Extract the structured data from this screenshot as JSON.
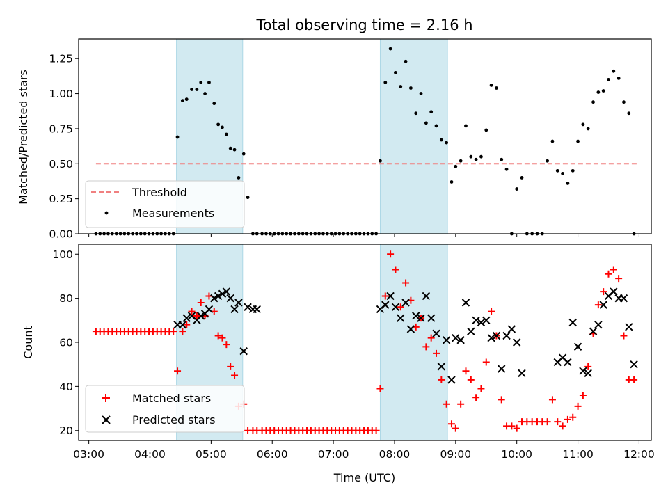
{
  "chart_data": [
    {
      "type": "scatter",
      "title": "Total observing time = 2.16 h",
      "xlabel": "",
      "ylabel": "Matched/Predicted stars",
      "xlim": [
        "02:50",
        "12:12"
      ],
      "ylim": [
        0,
        1.39
      ],
      "yticks": [
        "0.00",
        "0.25",
        "0.50",
        "0.75",
        "1.00",
        "1.25"
      ],
      "ytick_values": [
        0,
        0.25,
        0.5,
        0.75,
        1.0,
        1.25
      ],
      "legend_position": "lower-left",
      "shaded_regions": [
        [
          "04:26",
          "05:31"
        ],
        [
          "07:46",
          "08:52"
        ]
      ],
      "colors": {
        "threshold": "#f08080",
        "measurements": "#000000",
        "shade": "#add8e6"
      },
      "series": [
        {
          "name": "Threshold",
          "style": "dashed-line",
          "x": [
            "03:07",
            "11:58"
          ],
          "y": [
            0.5,
            0.5
          ]
        },
        {
          "name": "Measurements",
          "style": "dots",
          "x": [
            "03:07",
            "03:11",
            "03:15",
            "03:19",
            "03:23",
            "03:27",
            "03:31",
            "03:35",
            "03:39",
            "03:43",
            "03:47",
            "03:51",
            "03:55",
            "03:59",
            "04:03",
            "04:07",
            "04:11",
            "04:15",
            "04:19",
            "04:23",
            "04:27",
            "04:32",
            "04:36",
            "04:41",
            "04:46",
            "04:50",
            "04:54",
            "04:58",
            "05:03",
            "05:07",
            "05:11",
            "05:15",
            "05:19",
            "05:23",
            "05:27",
            "05:32",
            "05:36",
            "05:41",
            "05:45",
            "05:50",
            "05:54",
            "05:58",
            "06:02",
            "06:06",
            "06:10",
            "06:14",
            "06:18",
            "06:22",
            "06:26",
            "06:30",
            "06:34",
            "06:38",
            "06:42",
            "06:46",
            "06:50",
            "06:54",
            "06:58",
            "07:02",
            "07:06",
            "07:10",
            "07:14",
            "07:18",
            "07:22",
            "07:26",
            "07:30",
            "07:34",
            "07:38",
            "07:42",
            "07:46",
            "07:51",
            "07:56",
            "08:01",
            "08:06",
            "08:11",
            "08:16",
            "08:21",
            "08:26",
            "08:31",
            "08:36",
            "08:41",
            "08:46",
            "08:51",
            "08:56",
            "09:00",
            "09:05",
            "09:10",
            "09:15",
            "09:20",
            "09:25",
            "09:30",
            "09:35",
            "09:40",
            "09:45",
            "09:50",
            "09:55",
            "10:00",
            "10:05",
            "10:10",
            "10:15",
            "10:20",
            "10:25",
            "10:30",
            "10:35",
            "10:40",
            "10:45",
            "10:50",
            "10:55",
            "11:00",
            "11:05",
            "11:10",
            "11:15",
            "11:20",
            "11:25",
            "11:30",
            "11:35",
            "11:40",
            "11:45",
            "11:50",
            "11:55"
          ],
          "y": [
            0,
            0,
            0,
            0,
            0,
            0,
            0,
            0,
            0,
            0,
            0,
            0,
            0,
            0,
            0,
            0,
            0,
            0,
            0,
            0,
            0.69,
            0.95,
            0.96,
            1.03,
            1.03,
            1.08,
            1.0,
            1.08,
            0.93,
            0.78,
            0.76,
            0.71,
            0.61,
            0.6,
            0.4,
            0.57,
            0.26,
            0,
            0,
            0,
            0,
            0,
            0,
            0,
            0,
            0,
            0,
            0,
            0,
            0,
            0,
            0,
            0,
            0,
            0,
            0,
            0,
            0,
            0,
            0,
            0,
            0,
            0,
            0,
            0,
            0,
            0,
            0,
            0.52,
            1.08,
            1.32,
            1.15,
            1.05,
            1.23,
            1.04,
            0.86,
            1.0,
            0.79,
            0.87,
            0.77,
            0.67,
            0.65,
            0.37,
            0.48,
            0.52,
            0.77,
            0.55,
            0.53,
            0.55,
            0.74,
            1.06,
            1.04,
            0.53,
            0.46,
            0,
            0.32,
            0.4,
            0,
            0,
            0,
            0,
            0.52,
            0.66,
            0.45,
            0.43,
            0.36,
            0.45,
            0.66,
            0.78,
            0.75,
            0.94,
            1.01,
            1.02,
            1.1,
            1.16,
            1.11,
            0.94,
            0.86,
            0
          ]
        }
      ]
    },
    {
      "type": "scatter",
      "title": "",
      "xlabel": "Time (UTC)",
      "ylabel": "Count",
      "xlim": [
        "02:50",
        "12:12"
      ],
      "ylim": [
        15.5,
        104.5
      ],
      "xticks": [
        "03:00",
        "04:00",
        "05:00",
        "06:00",
        "07:00",
        "08:00",
        "09:00",
        "10:00",
        "11:00",
        "12:00"
      ],
      "yticks": [
        "20",
        "40",
        "60",
        "80",
        "100"
      ],
      "ytick_values": [
        20,
        40,
        60,
        80,
        100
      ],
      "legend_position": "lower-left",
      "shaded_regions": [
        [
          "04:26",
          "05:31"
        ],
        [
          "07:46",
          "08:52"
        ]
      ],
      "colors": {
        "matched": "#ff0000",
        "predicted": "#000000",
        "shade": "#add8e6"
      },
      "series": [
        {
          "name": "Matched stars",
          "marker": "plus",
          "x": [
            "03:07",
            "03:11",
            "03:15",
            "03:19",
            "03:23",
            "03:27",
            "03:31",
            "03:35",
            "03:39",
            "03:43",
            "03:47",
            "03:51",
            "03:55",
            "03:59",
            "04:03",
            "04:07",
            "04:11",
            "04:15",
            "04:19",
            "04:23",
            "04:27",
            "04:32",
            "04:36",
            "04:41",
            "04:46",
            "04:50",
            "04:54",
            "04:58",
            "05:03",
            "05:07",
            "05:11",
            "05:15",
            "05:19",
            "05:23",
            "05:27",
            "05:32",
            "05:36",
            "05:41",
            "05:45",
            "05:50",
            "05:54",
            "05:58",
            "06:02",
            "06:06",
            "06:10",
            "06:14",
            "06:18",
            "06:22",
            "06:26",
            "06:30",
            "06:34",
            "06:38",
            "06:42",
            "06:46",
            "06:50",
            "06:54",
            "06:58",
            "07:02",
            "07:06",
            "07:10",
            "07:14",
            "07:18",
            "07:22",
            "07:26",
            "07:30",
            "07:34",
            "07:38",
            "07:42",
            "07:46",
            "07:51",
            "07:56",
            "08:01",
            "08:06",
            "08:11",
            "08:16",
            "08:21",
            "08:26",
            "08:31",
            "08:36",
            "08:41",
            "08:46",
            "08:51",
            "08:56",
            "09:00",
            "09:05",
            "09:10",
            "09:15",
            "09:20",
            "09:25",
            "09:30",
            "09:35",
            "09:40",
            "09:45",
            "09:50",
            "09:55",
            "10:00",
            "10:05",
            "10:10",
            "10:15",
            "10:20",
            "10:25",
            "10:30",
            "10:35",
            "10:40",
            "10:45",
            "10:50",
            "10:55",
            "11:00",
            "11:05",
            "11:10",
            "11:15",
            "11:20",
            "11:25",
            "11:30",
            "11:35",
            "11:40",
            "11:45",
            "11:50",
            "11:55"
          ],
          "y": [
            65,
            65,
            65,
            65,
            65,
            65,
            65,
            65,
            65,
            65,
            65,
            65,
            65,
            65,
            65,
            65,
            65,
            65,
            65,
            65,
            47,
            65,
            68,
            74,
            72,
            78,
            72,
            81,
            74,
            63,
            62,
            59,
            49,
            45,
            31,
            32,
            20,
            20,
            20,
            20,
            20,
            20,
            20,
            20,
            20,
            20,
            20,
            20,
            20,
            20,
            20,
            20,
            20,
            20,
            20,
            20,
            20,
            20,
            20,
            20,
            20,
            20,
            20,
            20,
            20,
            20,
            20,
            20,
            39,
            81,
            100,
            93,
            76,
            87,
            79,
            67,
            71,
            58,
            62,
            55,
            43,
            32,
            23,
            21,
            32,
            47,
            43,
            35,
            39,
            51,
            74,
            63,
            34,
            22,
            22,
            21,
            24,
            24,
            24,
            24,
            24,
            24,
            34,
            24,
            22,
            25,
            26,
            31,
            36,
            49,
            64,
            77,
            83,
            91,
            93,
            89,
            63,
            43,
            43
          ]
        },
        {
          "name": "Predicted stars",
          "marker": "x",
          "x": [
            "04:27",
            "04:32",
            "04:36",
            "04:41",
            "04:46",
            "04:50",
            "04:54",
            "04:58",
            "05:03",
            "05:07",
            "05:11",
            "05:15",
            "05:19",
            "05:23",
            "05:27",
            "05:32",
            "05:36",
            "05:41",
            "05:45",
            "07:46",
            "07:51",
            "07:56",
            "08:01",
            "08:06",
            "08:11",
            "08:16",
            "08:21",
            "08:26",
            "08:31",
            "08:36",
            "08:41",
            "08:46",
            "08:51",
            "08:56",
            "09:00",
            "09:05",
            "09:10",
            "09:15",
            "09:20",
            "09:25",
            "09:30",
            "09:35",
            "09:40",
            "09:45",
            "09:50",
            "09:55",
            "10:00",
            "10:05",
            "10:40",
            "10:45",
            "10:50",
            "10:55",
            "11:00",
            "11:05",
            "11:10",
            "11:15",
            "11:20",
            "11:25",
            "11:30",
            "11:35",
            "11:40",
            "11:45",
            "11:50",
            "11:55"
          ],
          "y": [
            68,
            68,
            71,
            72,
            70,
            72,
            73,
            75,
            80,
            81,
            82,
            83,
            80,
            75,
            78,
            56,
            76,
            75,
            75,
            75,
            77,
            81,
            76,
            71,
            78,
            66,
            72,
            71,
            81,
            71,
            64,
            49,
            61,
            43,
            62,
            61,
            78,
            65,
            70,
            69,
            70,
            62,
            63,
            48,
            63,
            66,
            60,
            46,
            51,
            53,
            51,
            69,
            58,
            47,
            46,
            65,
            68,
            77,
            81,
            83,
            80,
            80,
            67,
            50
          ]
        }
      ]
    }
  ]
}
